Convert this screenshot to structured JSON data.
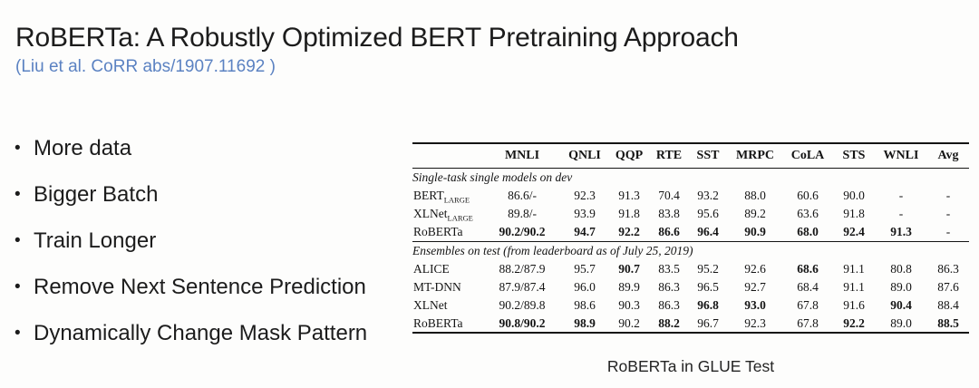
{
  "colors": {
    "background": "#fdfdfc",
    "title_text": "#1c1c1c",
    "citation_blue": "#5b82c2",
    "table_text": "#141414",
    "rule": "#141414"
  },
  "slide": {
    "title": "RoBERTa: A Robustly Optimized BERT Pretraining Approach",
    "citation": "(Liu et al. CoRR abs/1907.11692 )",
    "bullet_marker": "•",
    "bullets": [
      "More data",
      "Bigger Batch",
      "Train Longer",
      "Remove Next Sentence Prediction",
      "Dynamically Change Mask Pattern"
    ],
    "caption": "RoBERTa in GLUE Test"
  },
  "chart_data": {
    "type": "table",
    "columns": [
      "MNLI",
      "QNLI",
      "QQP",
      "RTE",
      "SST",
      "MRPC",
      "CoLA",
      "STS",
      "WNLI",
      "Avg"
    ],
    "sections": [
      {
        "title": "Single-task single models on dev",
        "rows": [
          {
            "model": "BERT",
            "model_sub": "LARGE",
            "cells": [
              {
                "v": "86.6/-",
                "b": false
              },
              {
                "v": "92.3",
                "b": false
              },
              {
                "v": "91.3",
                "b": false
              },
              {
                "v": "70.4",
                "b": false
              },
              {
                "v": "93.2",
                "b": false
              },
              {
                "v": "88.0",
                "b": false
              },
              {
                "v": "60.6",
                "b": false
              },
              {
                "v": "90.0",
                "b": false
              },
              {
                "v": "-",
                "b": false
              },
              {
                "v": "-",
                "b": false
              }
            ]
          },
          {
            "model": "XLNet",
            "model_sub": "LARGE",
            "cells": [
              {
                "v": "89.8/-",
                "b": false
              },
              {
                "v": "93.9",
                "b": false
              },
              {
                "v": "91.8",
                "b": false
              },
              {
                "v": "83.8",
                "b": false
              },
              {
                "v": "95.6",
                "b": false
              },
              {
                "v": "89.2",
                "b": false
              },
              {
                "v": "63.6",
                "b": false
              },
              {
                "v": "91.8",
                "b": false
              },
              {
                "v": "-",
                "b": false
              },
              {
                "v": "-",
                "b": false
              }
            ]
          },
          {
            "model": "RoBERTa",
            "model_sub": "",
            "cells": [
              {
                "v": "90.2/90.2",
                "b": true
              },
              {
                "v": "94.7",
                "b": true
              },
              {
                "v": "92.2",
                "b": true
              },
              {
                "v": "86.6",
                "b": true
              },
              {
                "v": "96.4",
                "b": true
              },
              {
                "v": "90.9",
                "b": true
              },
              {
                "v": "68.0",
                "b": true
              },
              {
                "v": "92.4",
                "b": true
              },
              {
                "v": "91.3",
                "b": true
              },
              {
                "v": "-",
                "b": false
              }
            ]
          }
        ]
      },
      {
        "title": "Ensembles on test (from leaderboard as of July 25, 2019)",
        "rows": [
          {
            "model": "ALICE",
            "model_sub": "",
            "cells": [
              {
                "v": "88.2/87.9",
                "b": false
              },
              {
                "v": "95.7",
                "b": false
              },
              {
                "v": "90.7",
                "b": true
              },
              {
                "v": "83.5",
                "b": false
              },
              {
                "v": "95.2",
                "b": false
              },
              {
                "v": "92.6",
                "b": false
              },
              {
                "v": "68.6",
                "b": true
              },
              {
                "v": "91.1",
                "b": false
              },
              {
                "v": "80.8",
                "b": false
              },
              {
                "v": "86.3",
                "b": false
              }
            ]
          },
          {
            "model": "MT-DNN",
            "model_sub": "",
            "cells": [
              {
                "v": "87.9/87.4",
                "b": false
              },
              {
                "v": "96.0",
                "b": false
              },
              {
                "v": "89.9",
                "b": false
              },
              {
                "v": "86.3",
                "b": false
              },
              {
                "v": "96.5",
                "b": false
              },
              {
                "v": "92.7",
                "b": false
              },
              {
                "v": "68.4",
                "b": false
              },
              {
                "v": "91.1",
                "b": false
              },
              {
                "v": "89.0",
                "b": false
              },
              {
                "v": "87.6",
                "b": false
              }
            ]
          },
          {
            "model": "XLNet",
            "model_sub": "",
            "cells": [
              {
                "v": "90.2/89.8",
                "b": false
              },
              {
                "v": "98.6",
                "b": false
              },
              {
                "v": "90.3",
                "b": false
              },
              {
                "v": "86.3",
                "b": false
              },
              {
                "v": "96.8",
                "b": true
              },
              {
                "v": "93.0",
                "b": true
              },
              {
                "v": "67.8",
                "b": false
              },
              {
                "v": "91.6",
                "b": false
              },
              {
                "v": "90.4",
                "b": true
              },
              {
                "v": "88.4",
                "b": false
              }
            ]
          },
          {
            "model": "RoBERTa",
            "model_sub": "",
            "cells": [
              {
                "v": "90.8/90.2",
                "b": true
              },
              {
                "v": "98.9",
                "b": true
              },
              {
                "v": "90.2",
                "b": false
              },
              {
                "v": "88.2",
                "b": true
              },
              {
                "v": "96.7",
                "b": false
              },
              {
                "v": "92.3",
                "b": false
              },
              {
                "v": "67.8",
                "b": false
              },
              {
                "v": "92.2",
                "b": true
              },
              {
                "v": "89.0",
                "b": false
              },
              {
                "v": "88.5",
                "b": true
              }
            ]
          }
        ]
      }
    ]
  }
}
